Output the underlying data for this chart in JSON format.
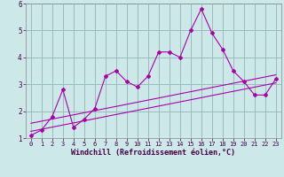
{
  "xlabel": "Windchill (Refroidissement éolien,°C)",
  "bg_color": "#cce8e8",
  "line_color": "#aa00aa",
  "grid_color": "#99bbbb",
  "x_data": [
    0,
    1,
    2,
    3,
    4,
    5,
    6,
    7,
    8,
    9,
    10,
    11,
    12,
    13,
    14,
    15,
    16,
    17,
    18,
    19,
    20,
    21,
    22,
    23
  ],
  "y_data": [
    1.1,
    1.3,
    1.8,
    2.8,
    1.4,
    1.7,
    2.1,
    3.3,
    3.5,
    3.1,
    2.9,
    3.3,
    4.2,
    4.2,
    4.0,
    5.0,
    5.8,
    4.9,
    4.3,
    3.5,
    3.1,
    2.6,
    2.6,
    3.2
  ],
  "ylim": [
    1.0,
    6.0
  ],
  "xlim": [
    -0.5,
    23.5
  ],
  "yticks": [
    1,
    2,
    3,
    4,
    5,
    6
  ],
  "xticks": [
    0,
    1,
    2,
    3,
    4,
    5,
    6,
    7,
    8,
    9,
    10,
    11,
    12,
    13,
    14,
    15,
    16,
    17,
    18,
    19,
    20,
    21,
    22,
    23
  ],
  "trend1_start_y": 1.25,
  "trend1_end_y": 3.05,
  "trend2_start_y": 1.55,
  "trend2_end_y": 3.35,
  "tick_fontsize": 5.0,
  "label_fontsize": 6.0
}
